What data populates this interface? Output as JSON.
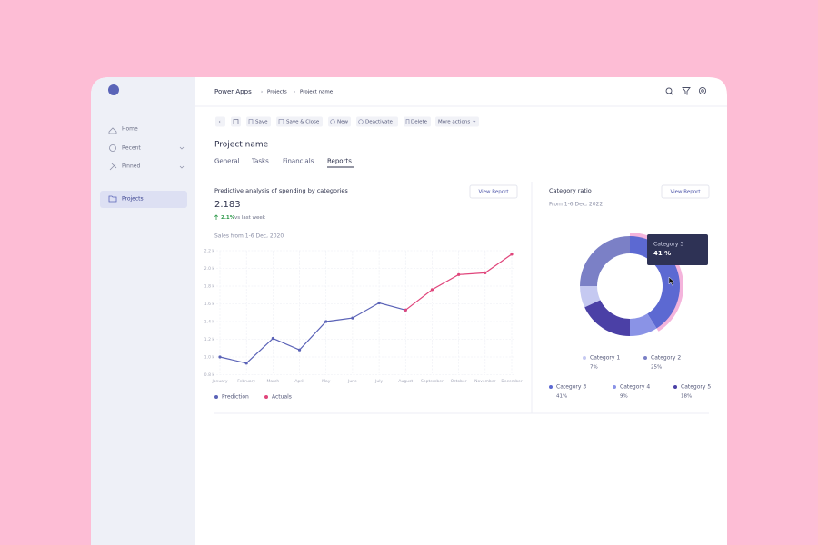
{
  "sidebar": {
    "items": [
      "Home",
      "Recent",
      "Pinned",
      "Projects"
    ]
  },
  "header": {
    "breadcrumb": [
      "Power Apps",
      "Projects",
      "Project name"
    ]
  },
  "toolbar": [
    "Save",
    "Save & Close",
    "New",
    "Deactivate",
    "Delete",
    "More actions"
  ],
  "page": {
    "title": "Project name",
    "tabs": [
      "General",
      "Tasks",
      "Financials",
      "Reports"
    ]
  },
  "kpi": {
    "title": "Predictive analysis of spending by categories",
    "button": "View Report",
    "value": "2.183",
    "change": "2.1%",
    "change_note": "vs last week",
    "subtitle": "Sales from 1-6 Dec, 2020"
  },
  "chart_data": [
    {
      "type": "line",
      "categories": [
        "January",
        "February",
        "March",
        "April",
        "May",
        "June",
        "July",
        "August",
        "September",
        "October",
        "November",
        "December"
      ],
      "series": [
        {
          "name": "Prediction",
          "color": "#5b63b7",
          "values": [
            1.0,
            0.93,
            1.21,
            1.08,
            1.4,
            1.44,
            1.61,
            1.53,
            null,
            null,
            null,
            null
          ]
        },
        {
          "name": "Actuals",
          "color": "#e0457b",
          "values": [
            null,
            null,
            null,
            null,
            null,
            null,
            null,
            1.53,
            1.76,
            1.93,
            1.95,
            2.16
          ]
        }
      ],
      "ylim": [
        0.8,
        2.2
      ],
      "yticks": [
        {
          "value": 0.8,
          "label": "0.8 k"
        },
        {
          "value": 1.0,
          "label": "1.0 k"
        },
        {
          "value": 1.2,
          "label": "1.2 k"
        },
        {
          "value": 1.4,
          "label": "1.4 k"
        },
        {
          "value": 1.6,
          "label": "1.6 k"
        },
        {
          "value": 1.8,
          "label": "1.8 k"
        },
        {
          "value": 2.0,
          "label": "2.0 k"
        },
        {
          "value": 2.2,
          "label": "2.2 k"
        }
      ],
      "grid": true
    },
    {
      "type": "donut",
      "title": "Category ratio",
      "subtitle": "From 1-6 Dec, 2022",
      "button": "View Report",
      "categories": [
        "Category 1",
        "Category 2",
        "Category 3",
        "Category 4",
        "Category 5"
      ],
      "values": [
        7,
        25,
        41,
        9,
        18
      ],
      "value_labels": [
        "7%",
        "25%",
        "41%",
        "9%",
        "18%"
      ],
      "colors": [
        "#c5c9f1",
        "#7b80c6",
        "#5c69d2",
        "#8a93e6",
        "#4b40a6"
      ],
      "tooltip": {
        "label": "Category 3",
        "value": "41 %"
      }
    }
  ]
}
